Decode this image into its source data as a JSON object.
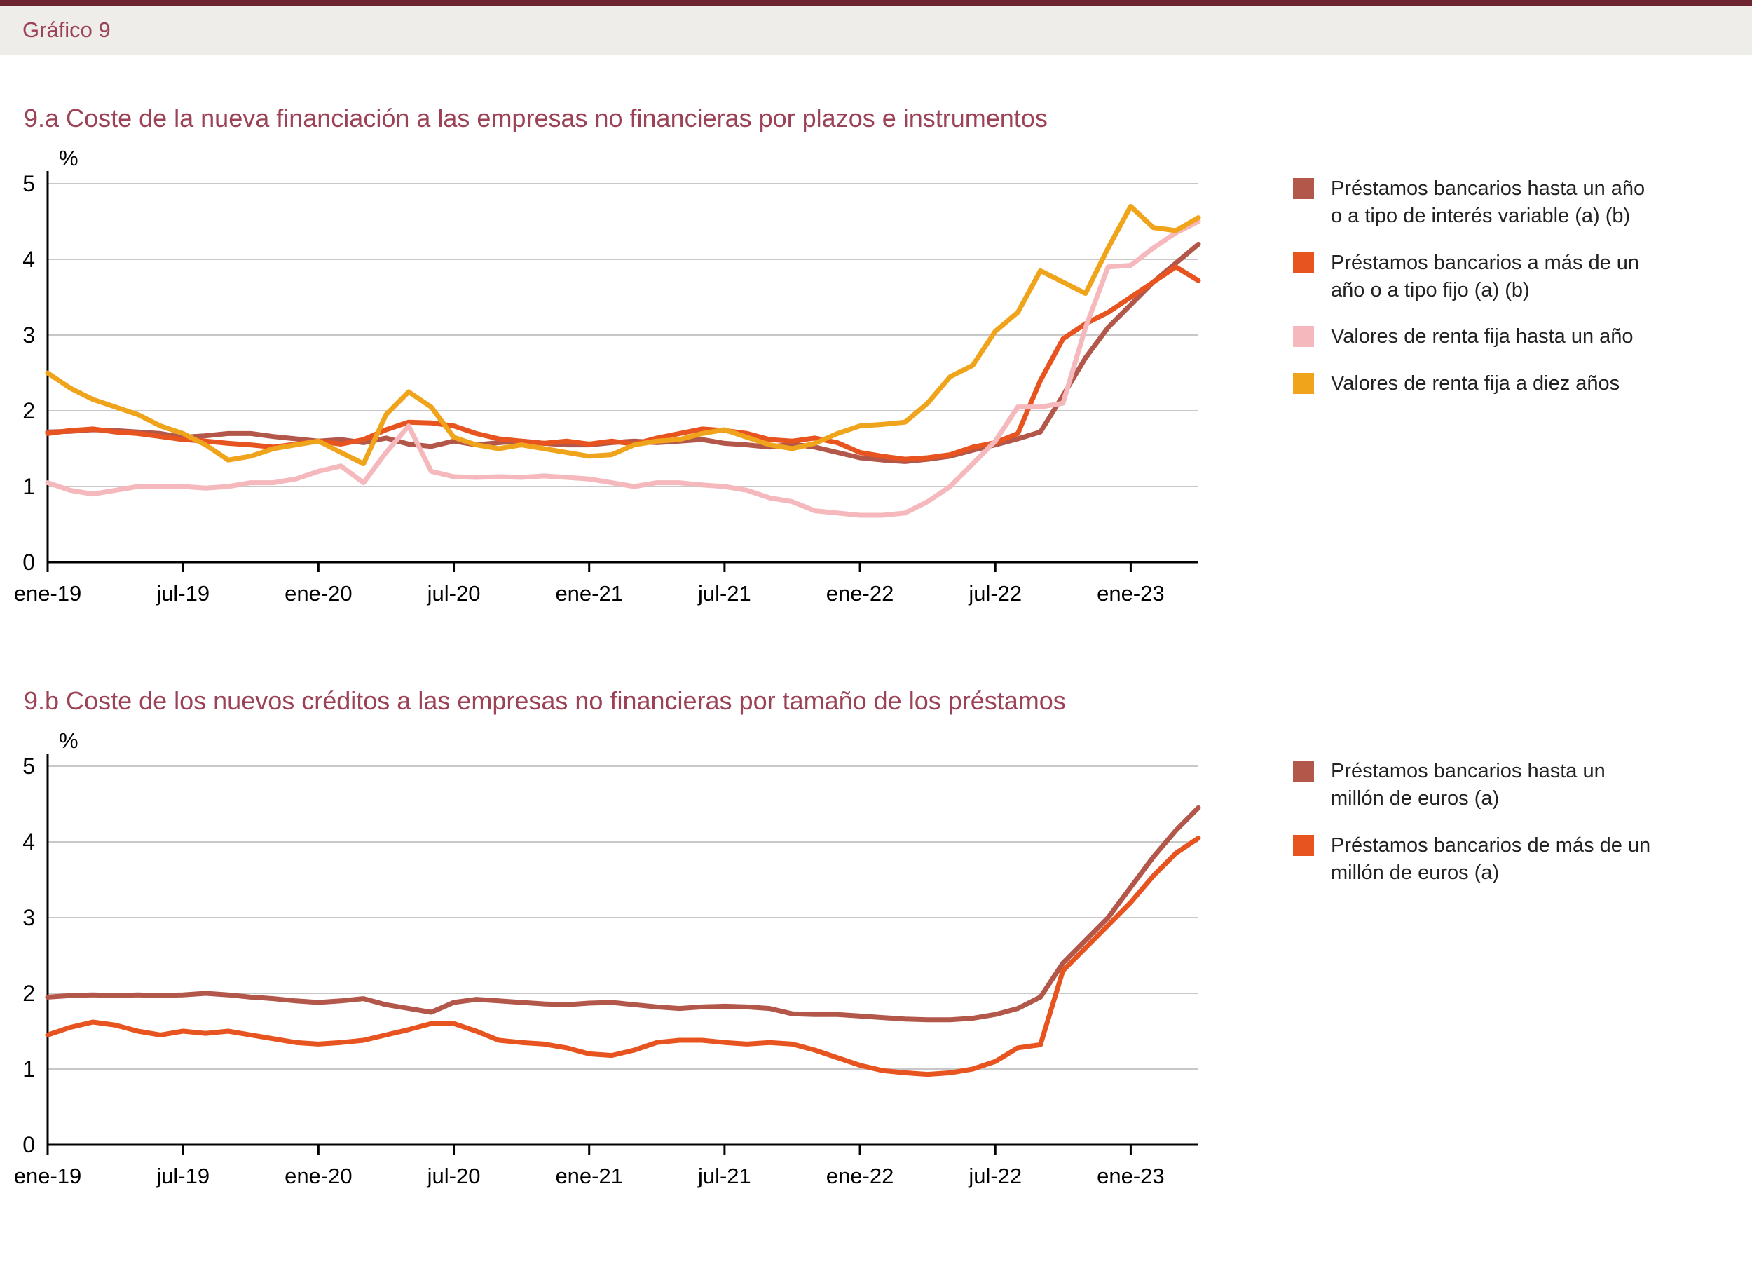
{
  "header": {
    "label": "Gráfico 9"
  },
  "colors": {
    "accent_rule": "#6e2531",
    "title_text": "#9c4256",
    "axis": "#000000",
    "gridline": "#c8c8c8"
  },
  "chart_data": [
    {
      "type": "line",
      "id": "9a",
      "title": "9.a  Coste de la nueva financiación a las empresas no financieras por plazos e instrumentos",
      "ylabel": "%",
      "ylim": [
        0,
        5
      ],
      "yticks": [
        0,
        1,
        2,
        3,
        4,
        5
      ],
      "grid": "horizontal",
      "legend_position": "right",
      "x_frequency": "monthly",
      "x_range": "ene-19 a abr-23",
      "x_tick_labels": [
        "ene-19",
        "jul-19",
        "ene-20",
        "jul-20",
        "ene-21",
        "jul-21",
        "ene-22",
        "jul-22",
        "ene-23"
      ],
      "x_tick_indices": [
        0,
        6,
        12,
        18,
        24,
        30,
        36,
        42,
        48
      ],
      "series": [
        {
          "name": "Préstamos bancarios hasta un año o a tipo de interés variable (a) (b)",
          "color": "#b2574a",
          "values": [
            1.72,
            1.73,
            1.75,
            1.74,
            1.72,
            1.7,
            1.65,
            1.67,
            1.7,
            1.7,
            1.66,
            1.63,
            1.6,
            1.62,
            1.58,
            1.64,
            1.56,
            1.53,
            1.6,
            1.55,
            1.58,
            1.6,
            1.57,
            1.55,
            1.55,
            1.58,
            1.6,
            1.58,
            1.6,
            1.62,
            1.57,
            1.55,
            1.52,
            1.56,
            1.52,
            1.45,
            1.38,
            1.35,
            1.33,
            1.36,
            1.4,
            1.48,
            1.55,
            1.63,
            1.72,
            2.2,
            2.7,
            3.1,
            3.4,
            3.7,
            3.95,
            4.2
          ]
        },
        {
          "name": "Préstamos bancarios a más de un año o a tipo fijo (a) (b)",
          "color": "#e8541f",
          "values": [
            1.7,
            1.74,
            1.76,
            1.72,
            1.7,
            1.66,
            1.62,
            1.6,
            1.57,
            1.55,
            1.52,
            1.56,
            1.6,
            1.56,
            1.62,
            1.75,
            1.85,
            1.84,
            1.8,
            1.7,
            1.63,
            1.6,
            1.57,
            1.6,
            1.56,
            1.6,
            1.56,
            1.64,
            1.7,
            1.76,
            1.74,
            1.7,
            1.62,
            1.6,
            1.64,
            1.58,
            1.45,
            1.4,
            1.36,
            1.38,
            1.42,
            1.52,
            1.58,
            1.7,
            2.4,
            2.95,
            3.15,
            3.3,
            3.5,
            3.7,
            3.9,
            3.72
          ]
        },
        {
          "name": "Valores de renta fija hasta un año",
          "color": "#f5b9bd",
          "values": [
            1.05,
            0.95,
            0.9,
            0.95,
            1.0,
            1.0,
            1.0,
            0.98,
            1.0,
            1.05,
            1.05,
            1.1,
            1.2,
            1.27,
            1.05,
            1.45,
            1.8,
            1.2,
            1.13,
            1.12,
            1.13,
            1.12,
            1.14,
            1.12,
            1.1,
            1.05,
            1.0,
            1.05,
            1.05,
            1.02,
            1.0,
            0.95,
            0.85,
            0.8,
            0.68,
            0.65,
            0.62,
            0.62,
            0.65,
            0.8,
            1.0,
            1.3,
            1.6,
            2.05,
            2.05,
            2.1,
            3.1,
            3.9,
            3.92,
            4.15,
            4.35,
            4.5
          ]
        },
        {
          "name": "Valores de renta fija a diez años",
          "color": "#f0a41b",
          "values": [
            2.5,
            2.3,
            2.15,
            2.05,
            1.95,
            1.8,
            1.7,
            1.55,
            1.35,
            1.4,
            1.5,
            1.55,
            1.6,
            1.45,
            1.3,
            1.95,
            2.25,
            2.05,
            1.65,
            1.55,
            1.5,
            1.55,
            1.5,
            1.45,
            1.4,
            1.42,
            1.55,
            1.6,
            1.62,
            1.7,
            1.75,
            1.65,
            1.55,
            1.5,
            1.57,
            1.7,
            1.8,
            1.82,
            1.85,
            2.1,
            2.45,
            2.6,
            3.05,
            3.3,
            3.85,
            3.7,
            3.55,
            4.15,
            4.7,
            4.42,
            4.38,
            4.55
          ]
        }
      ]
    },
    {
      "type": "line",
      "id": "9b",
      "title": "9.b  Coste de los nuevos créditos a las empresas no financieras por tamaño de los préstamos",
      "ylabel": "%",
      "ylim": [
        0,
        5
      ],
      "yticks": [
        0,
        1,
        2,
        3,
        4,
        5
      ],
      "grid": "horizontal",
      "legend_position": "right",
      "x_frequency": "monthly",
      "x_range": "ene-19 a abr-23",
      "x_tick_labels": [
        "ene-19",
        "jul-19",
        "ene-20",
        "jul-20",
        "ene-21",
        "jul-21",
        "ene-22",
        "jul-22",
        "ene-23"
      ],
      "x_tick_indices": [
        0,
        6,
        12,
        18,
        24,
        30,
        36,
        42,
        48
      ],
      "series": [
        {
          "name": "Préstamos bancarios hasta un millón de euros (a)",
          "color": "#b2574a",
          "values": [
            1.95,
            1.97,
            1.98,
            1.97,
            1.98,
            1.97,
            1.98,
            2.0,
            1.98,
            1.95,
            1.93,
            1.9,
            1.88,
            1.9,
            1.93,
            1.85,
            1.8,
            1.75,
            1.88,
            1.92,
            1.9,
            1.88,
            1.86,
            1.85,
            1.87,
            1.88,
            1.85,
            1.82,
            1.8,
            1.82,
            1.83,
            1.82,
            1.8,
            1.73,
            1.72,
            1.72,
            1.7,
            1.68,
            1.66,
            1.65,
            1.65,
            1.67,
            1.72,
            1.8,
            1.95,
            2.4,
            2.7,
            3.0,
            3.4,
            3.8,
            4.15,
            4.45
          ]
        },
        {
          "name": "Préstamos bancarios de más de un millón de euros (a)",
          "color": "#e8541f",
          "values": [
            1.45,
            1.55,
            1.62,
            1.58,
            1.5,
            1.45,
            1.5,
            1.47,
            1.5,
            1.45,
            1.4,
            1.35,
            1.33,
            1.35,
            1.38,
            1.45,
            1.52,
            1.6,
            1.6,
            1.5,
            1.38,
            1.35,
            1.33,
            1.28,
            1.2,
            1.18,
            1.25,
            1.35,
            1.38,
            1.38,
            1.35,
            1.33,
            1.35,
            1.33,
            1.25,
            1.15,
            1.05,
            0.98,
            0.95,
            0.93,
            0.95,
            1.0,
            1.1,
            1.28,
            1.32,
            2.3,
            2.6,
            2.9,
            3.2,
            3.55,
            3.85,
            4.05
          ]
        }
      ]
    }
  ]
}
